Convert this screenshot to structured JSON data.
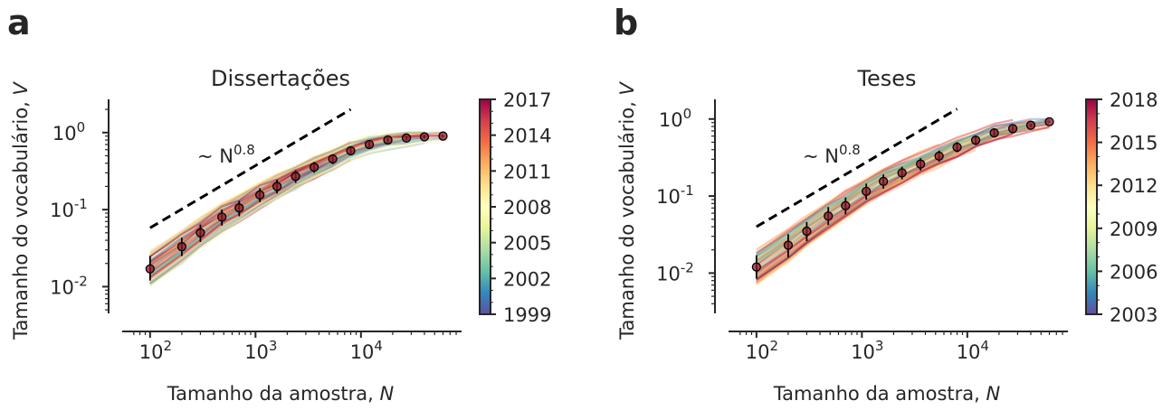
{
  "shared": {
    "xlabel": "Tamanho da amostra, N",
    "ylabel": "Tamanho do vocabulário, V",
    "annotation": "~ N^0.8",
    "colormap": "Spectral_r"
  },
  "chart_data": [
    {
      "panel_label": "a",
      "type": "line",
      "title": "Dissertações",
      "xlabel": "Tamanho da amostra, N",
      "ylabel": "Tamanho do vocabulário, V",
      "x_scale": "log",
      "y_scale": "log",
      "xlim": [
        60,
        90000
      ],
      "ylim": [
        0.0045,
        2.7
      ],
      "x_ticks": [
        "10^2",
        "10^3",
        "10^4"
      ],
      "y_ticks": [
        "10^-2",
        "10^-1",
        "10^0"
      ],
      "colorbar": {
        "min": 1999,
        "max": 2017,
        "ticks": [
          1999,
          2002,
          2005,
          2008,
          2011,
          2014,
          2017
        ]
      },
      "reference_line": {
        "label": "~ N^0.8",
        "exponent": 0.8,
        "x": [
          100,
          8000
        ],
        "y": [
          0.058,
          2.0
        ]
      },
      "mean_points": {
        "x": [
          100,
          200,
          300,
          480,
          700,
          1100,
          1600,
          2400,
          3600,
          5400,
          8000,
          12000,
          18000,
          27000,
          40000,
          60000
        ],
        "y": [
          0.017,
          0.033,
          0.05,
          0.08,
          0.105,
          0.155,
          0.2,
          0.27,
          0.355,
          0.455,
          0.58,
          0.7,
          0.8,
          0.85,
          0.88,
          0.9
        ],
        "err_low": [
          0.012,
          0.025,
          0.038,
          0.062,
          0.082,
          0.125,
          0.162,
          0.222,
          0.3,
          0.39,
          0.52,
          0.63,
          0.74,
          0.8,
          0.84,
          0.87
        ],
        "err_high": [
          0.025,
          0.043,
          0.064,
          0.1,
          0.13,
          0.19,
          0.245,
          0.325,
          0.415,
          0.52,
          0.645,
          0.77,
          0.86,
          0.9,
          0.92,
          0.93
        ]
      }
    },
    {
      "panel_label": "b",
      "type": "line",
      "title": "Teses",
      "xlabel": "Tamanho da amostra, N",
      "ylabel": "Tamanho do vocabulário, V",
      "x_scale": "log",
      "y_scale": "log",
      "xlim": [
        60,
        90000
      ],
      "ylim": [
        0.003,
        1.8
      ],
      "x_ticks": [
        "10^2",
        "10^3",
        "10^4"
      ],
      "y_ticks": [
        "10^-2",
        "10^-1",
        "10^0"
      ],
      "colorbar": {
        "min": 2003,
        "max": 2018,
        "ticks": [
          2003,
          2006,
          2009,
          2012,
          2015,
          2018
        ]
      },
      "reference_line": {
        "label": "~ N^0.8",
        "exponent": 0.8,
        "x": [
          100,
          8000
        ],
        "y": [
          0.04,
          1.35
        ]
      },
      "mean_points": {
        "x": [
          100,
          200,
          300,
          480,
          700,
          1100,
          1600,
          2400,
          3600,
          5400,
          8000,
          12000,
          18000,
          27000,
          40000,
          60000
        ],
        "y": [
          0.012,
          0.023,
          0.035,
          0.055,
          0.075,
          0.115,
          0.155,
          0.2,
          0.26,
          0.33,
          0.43,
          0.53,
          0.66,
          0.75,
          0.83,
          0.92
        ],
        "err_low": [
          0.0085,
          0.016,
          0.026,
          0.042,
          0.058,
          0.09,
          0.125,
          0.165,
          0.215,
          0.28,
          0.37,
          0.46,
          0.59,
          0.69,
          0.79,
          0.9
        ],
        "err_high": [
          0.017,
          0.032,
          0.046,
          0.072,
          0.096,
          0.145,
          0.19,
          0.24,
          0.31,
          0.39,
          0.5,
          0.61,
          0.74,
          0.82,
          0.87,
          0.95
        ]
      }
    }
  ]
}
